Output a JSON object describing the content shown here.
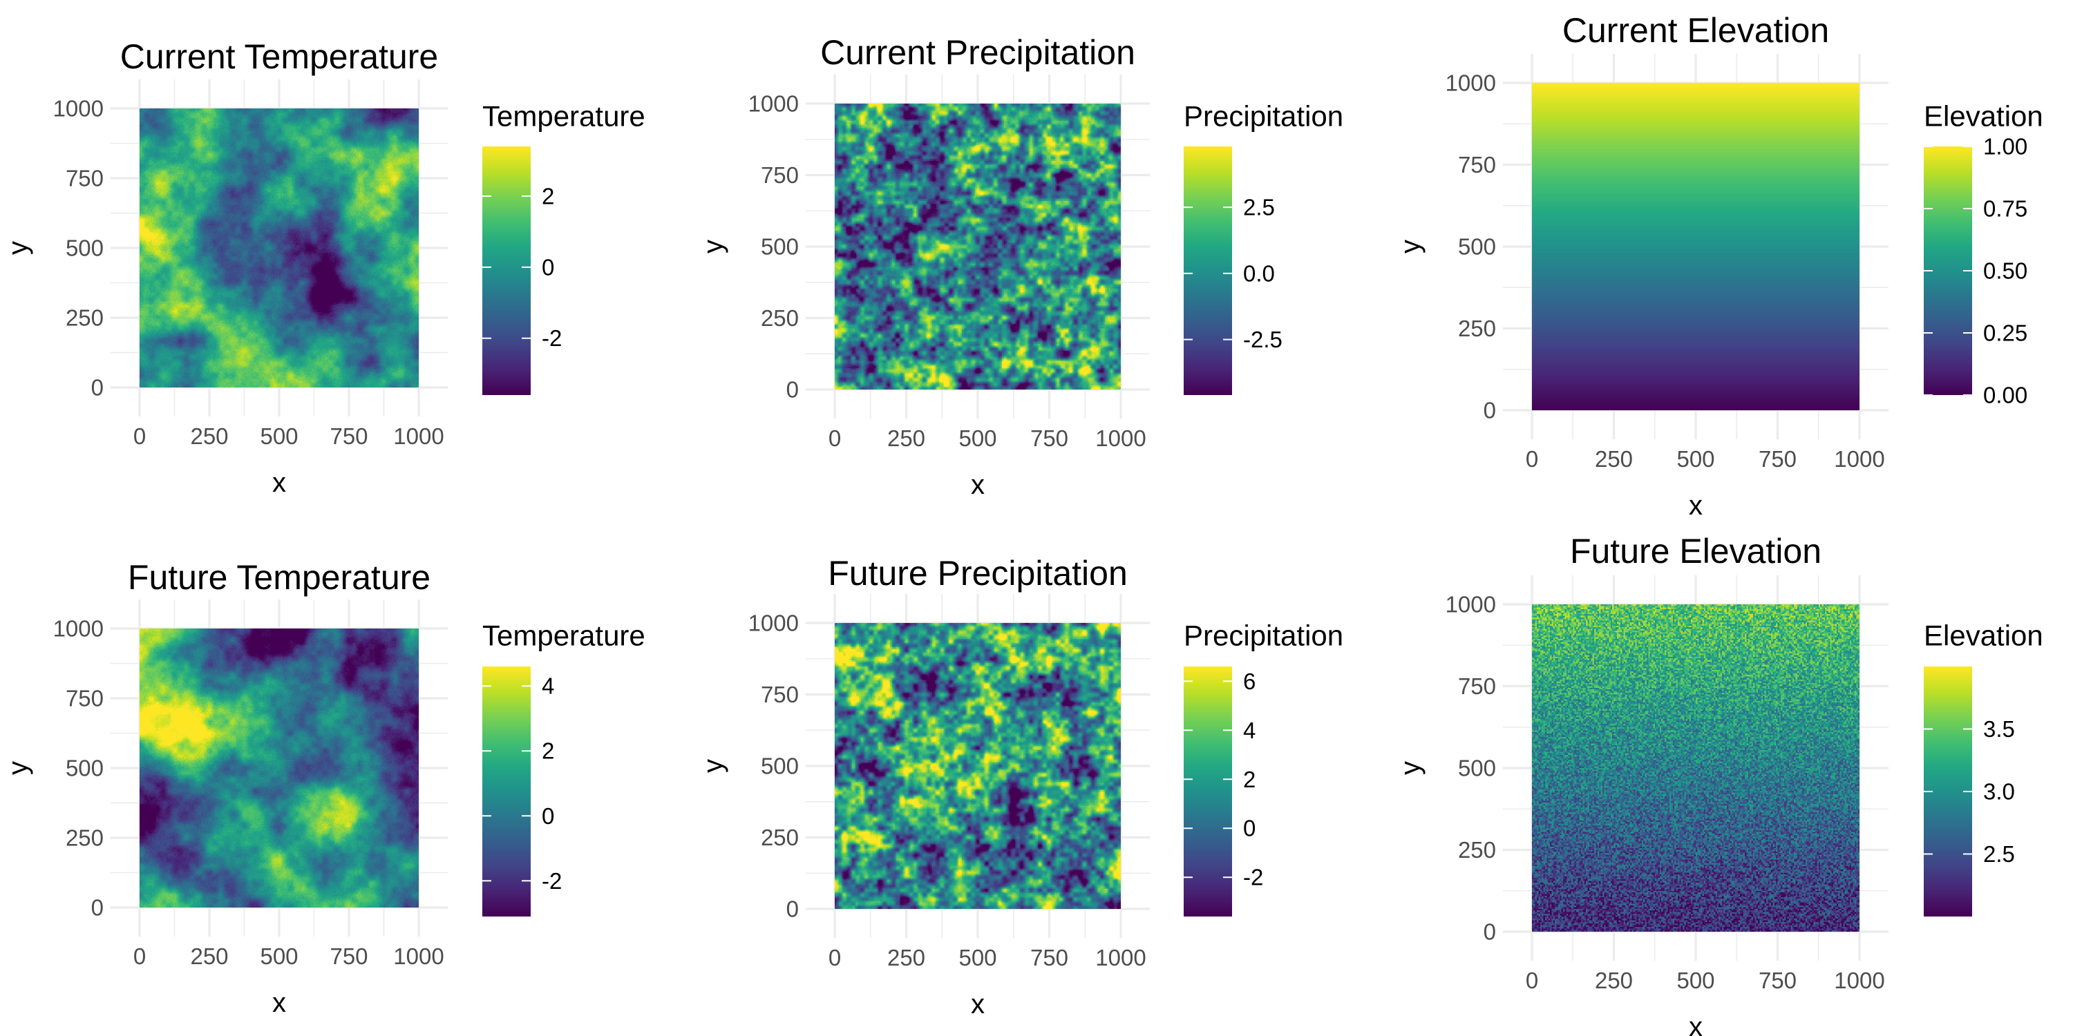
{
  "figure": {
    "colors": {
      "viridis": [
        "#440154",
        "#482475",
        "#414487",
        "#355f8d",
        "#2a788e",
        "#21918c",
        "#22a884",
        "#44bf70",
        "#7ad151",
        "#bddf26",
        "#fde725"
      ],
      "grid": "#ebebeb",
      "tick_text": "#4d4d4d",
      "title_text": "#000000"
    }
  },
  "chart_data": [
    {
      "type": "heatmap",
      "title": "Current Temperature",
      "xlabel": "x",
      "ylabel": "y",
      "xlim": [
        0,
        1000
      ],
      "ylim": [
        0,
        1000
      ],
      "x_ticks": [
        "0",
        "250",
        "500",
        "750",
        "1000"
      ],
      "y_ticks": [
        "0",
        "250",
        "500",
        "750",
        "1000"
      ],
      "grid": true,
      "pattern": "smooth-noise",
      "legend": {
        "title": "Temperature",
        "position": "right",
        "range": [
          -3.6,
          3.4
        ],
        "ticks": [
          -2,
          0,
          2
        ],
        "tick_labels": [
          "-2",
          "0",
          "2"
        ]
      }
    },
    {
      "type": "heatmap",
      "title": "Current Precipitation",
      "xlabel": "x",
      "ylabel": "y",
      "xlim": [
        0,
        1000
      ],
      "ylim": [
        0,
        1000
      ],
      "x_ticks": [
        "0",
        "250",
        "500",
        "750",
        "1000"
      ],
      "y_ticks": [
        "0",
        "250",
        "500",
        "750",
        "1000"
      ],
      "grid": true,
      "pattern": "fine-noise",
      "legend": {
        "title": "Precipitation",
        "position": "right",
        "range": [
          -4.6,
          4.8
        ],
        "ticks": [
          -2.5,
          0,
          2.5
        ],
        "tick_labels": [
          "-2.5",
          "0.0",
          "2.5"
        ]
      }
    },
    {
      "type": "heatmap",
      "title": "Current Elevation",
      "xlabel": "x",
      "ylabel": "y",
      "xlim": [
        0,
        1000
      ],
      "ylim": [
        0,
        1000
      ],
      "x_ticks": [
        "0",
        "250",
        "500",
        "750",
        "1000"
      ],
      "y_ticks": [
        "0",
        "250",
        "500",
        "750",
        "1000"
      ],
      "grid": true,
      "pattern": "vertical-gradient",
      "legend": {
        "title": "Elevation",
        "position": "right",
        "range": [
          0,
          1
        ],
        "ticks": [
          0,
          0.25,
          0.5,
          0.75,
          1
        ],
        "tick_labels": [
          "0.00",
          "0.25",
          "0.50",
          "0.75",
          "1.00"
        ]
      }
    },
    {
      "type": "heatmap",
      "title": "Future Temperature",
      "xlabel": "x",
      "ylabel": "y",
      "xlim": [
        0,
        1000
      ],
      "ylim": [
        0,
        1000
      ],
      "x_ticks": [
        "0",
        "250",
        "500",
        "750",
        "1000"
      ],
      "y_ticks": [
        "0",
        "250",
        "500",
        "750",
        "1000"
      ],
      "grid": true,
      "pattern": "smooth-noise",
      "legend": {
        "title": "Temperature",
        "position": "right",
        "range": [
          -3.1,
          4.6
        ],
        "ticks": [
          -2,
          0,
          2,
          4
        ],
        "tick_labels": [
          "-2",
          "0",
          "2",
          "4"
        ]
      }
    },
    {
      "type": "heatmap",
      "title": "Future Precipitation",
      "xlabel": "x",
      "ylabel": "y",
      "xlim": [
        0,
        1000
      ],
      "ylim": [
        0,
        1000
      ],
      "x_ticks": [
        "0",
        "250",
        "500",
        "750",
        "1000"
      ],
      "y_ticks": [
        "0",
        "250",
        "500",
        "750",
        "1000"
      ],
      "grid": true,
      "pattern": "fine-noise",
      "legend": {
        "title": "Precipitation",
        "position": "right",
        "range": [
          -3.6,
          6.6
        ],
        "ticks": [
          -2,
          0,
          2,
          4,
          6
        ],
        "tick_labels": [
          "-2",
          "0",
          "2",
          "4",
          "6"
        ]
      }
    },
    {
      "type": "heatmap",
      "title": "Future Elevation",
      "xlabel": "x",
      "ylabel": "y",
      "xlim": [
        0,
        1000
      ],
      "ylim": [
        0,
        1000
      ],
      "x_ticks": [
        "0",
        "250",
        "500",
        "750",
        "1000"
      ],
      "y_ticks": [
        "0",
        "250",
        "500",
        "750",
        "1000"
      ],
      "grid": true,
      "pattern": "noisy-vertical-gradient",
      "legend": {
        "title": "Elevation",
        "position": "right",
        "range": [
          2.0,
          4.0
        ],
        "ticks": [
          2.5,
          3.0,
          3.5
        ],
        "tick_labels": [
          "2.5",
          "3.0",
          "3.5"
        ]
      }
    }
  ]
}
